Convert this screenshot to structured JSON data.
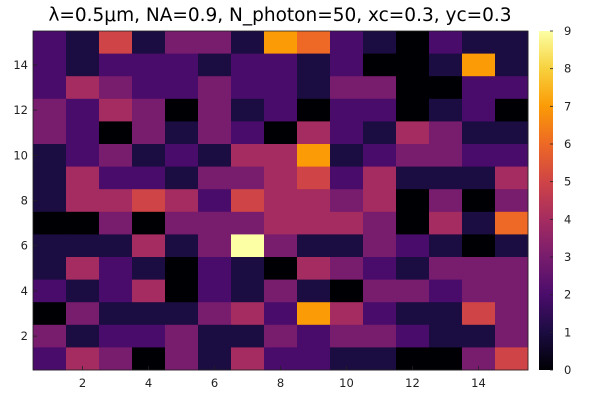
{
  "chart_data": {
    "type": "heatmap",
    "title": "λ=0.5μm, NA=0.9, N_photon=50, xc=0.3, yc=0.3",
    "xlabel": "",
    "ylabel": "",
    "xlim": [
      0.5,
      15.5
    ],
    "ylim": [
      0.5,
      15.5
    ],
    "x_ticks": [
      2,
      4,
      6,
      8,
      10,
      12,
      14
    ],
    "y_ticks": [
      2,
      4,
      6,
      8,
      10,
      12,
      14
    ],
    "colorbar": {
      "colormap": "inferno",
      "range": [
        0,
        9
      ],
      "ticks": [
        0,
        1,
        2,
        3,
        4,
        5,
        6,
        7,
        8,
        9
      ]
    },
    "grid": false,
    "rows_top_to_bottom_y": [
      15,
      14,
      13,
      12,
      11,
      10,
      9,
      8,
      7,
      6,
      5,
      4,
      3,
      2,
      1
    ],
    "values": [
      [
        2,
        1,
        5,
        1,
        3,
        3,
        1,
        7,
        6,
        2,
        1,
        0,
        2,
        1,
        1
      ],
      [
        2,
        1,
        2,
        2,
        2,
        1,
        2,
        2,
        1,
        2,
        0,
        0,
        1,
        7,
        1
      ],
      [
        2,
        4,
        3,
        2,
        2,
        3,
        2,
        2,
        1,
        3,
        3,
        0,
        0,
        2,
        2
      ],
      [
        3,
        2,
        4,
        3,
        0,
        3,
        1,
        2,
        0,
        2,
        2,
        0,
        1,
        2,
        0
      ],
      [
        3,
        2,
        0,
        3,
        1,
        3,
        2,
        0,
        4,
        2,
        1,
        4,
        3,
        1,
        1
      ],
      [
        1,
        2,
        3,
        1,
        2,
        1,
        4,
        4,
        7,
        1,
        2,
        3,
        3,
        2,
        2
      ],
      [
        1,
        4,
        2,
        2,
        1,
        3,
        3,
        4,
        5,
        2,
        4,
        1,
        1,
        1,
        4
      ],
      [
        1,
        4,
        4,
        5,
        4,
        2,
        5,
        4,
        4,
        3,
        4,
        0,
        3,
        0,
        3
      ],
      [
        0,
        0,
        3,
        0,
        3,
        3,
        3,
        4,
        4,
        4,
        3,
        0,
        4,
        1,
        6
      ],
      [
        1,
        1,
        1,
        4,
        1,
        3,
        9,
        3,
        1,
        1,
        3,
        2,
        1,
        0,
        1
      ],
      [
        1,
        4,
        2,
        1,
        0,
        2,
        1,
        0,
        4,
        3,
        2,
        1,
        3,
        3,
        3
      ],
      [
        2,
        1,
        2,
        4,
        0,
        2,
        1,
        3,
        1,
        0,
        3,
        3,
        2,
        3,
        3
      ],
      [
        0,
        3,
        1,
        1,
        1,
        3,
        4,
        2,
        7,
        4,
        2,
        1,
        1,
        5,
        3
      ],
      [
        3,
        1,
        2,
        2,
        3,
        1,
        1,
        3,
        2,
        3,
        3,
        2,
        1,
        1,
        3
      ],
      [
        2,
        4,
        3,
        0,
        3,
        1,
        4,
        2,
        2,
        1,
        1,
        0,
        0,
        3,
        5
      ]
    ]
  }
}
